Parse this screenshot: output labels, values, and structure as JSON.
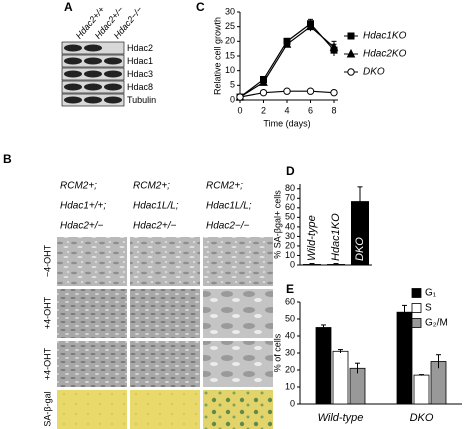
{
  "panels": [
    "A",
    "B",
    "C",
    "D",
    "E"
  ],
  "blot": {
    "lanes": [
      "Hdac2+/+",
      "Hdac2+/−",
      "Hdac2−/−"
    ],
    "bands": [
      "Hdac2",
      "Hdac1",
      "Hdac3",
      "Hdac8",
      "Tubulin"
    ]
  },
  "microscopy": {
    "columns": [
      [
        "RCM2+;",
        "Hdac1+/+;",
        "Hdac2+/−"
      ],
      [
        "RCM2+;",
        "Hdac1L/L;",
        "Hdac2+/−"
      ],
      [
        "RCM2+;",
        "Hdac1L/L;",
        "Hdac2−/−"
      ]
    ],
    "rows": [
      "−4-OHT",
      "+4-OHT",
      "+4-OHT",
      "SA-β-gal"
    ]
  },
  "chart_data": [
    {
      "type": "line",
      "xlabel": "Time (days)",
      "ylabel": "Relative cell growth",
      "x": [
        0,
        2,
        4,
        6,
        8
      ],
      "xlim": [
        0,
        8
      ],
      "xticks": [
        0,
        2,
        4,
        6,
        8
      ],
      "ylim": [
        0,
        30
      ],
      "yticks": [
        0,
        5,
        10,
        15,
        20,
        25,
        30
      ],
      "series": [
        {
          "name": "Hdac1KO",
          "color": "#000000",
          "marker": "square",
          "values": [
            1,
            7,
            20,
            26,
            17
          ],
          "errors": [
            0.3,
            1,
            1,
            1.5,
            2
          ]
        },
        {
          "name": "Hdac2KO",
          "color": "#000000",
          "marker": "triangle",
          "values": [
            1,
            6,
            19,
            25,
            18
          ],
          "errors": [
            0.3,
            1,
            1,
            1.5,
            2
          ]
        },
        {
          "name": "DKO",
          "color": "#ffffff",
          "marker": "circle",
          "values": [
            1,
            2.5,
            3,
            3,
            2.5
          ],
          "errors": [
            0.2,
            0.3,
            0.3,
            0.3,
            0.3
          ]
        }
      ]
    },
    {
      "type": "bar",
      "ylabel": "% SA-βgal+ cells",
      "categories": [
        "Wild-type",
        "Hdac1KO",
        "DKO"
      ],
      "values": [
        1,
        1,
        67
      ],
      "errors": [
        0.5,
        0.5,
        15
      ],
      "color": "#000000",
      "ylim": [
        0,
        85
      ],
      "yticks": [
        0,
        10,
        20,
        30,
        40,
        50,
        60,
        70,
        80
      ]
    },
    {
      "type": "grouped-bar",
      "ylabel": "% of cells",
      "categories": [
        "Wild-type",
        "DKO"
      ],
      "ylim": [
        0,
        60
      ],
      "yticks": [
        0,
        10,
        20,
        30,
        40,
        50,
        60
      ],
      "series": [
        {
          "name": "G₁",
          "color": "#000000",
          "values": [
            45,
            54
          ],
          "errors": [
            1.5,
            4
          ]
        },
        {
          "name": "S",
          "color": "#ffffff",
          "values": [
            31,
            17
          ],
          "errors": [
            1,
            0.3
          ]
        },
        {
          "name": "G₂/M",
          "color": "#999999",
          "values": [
            21,
            25
          ],
          "errors": [
            3,
            4
          ]
        }
      ]
    }
  ]
}
